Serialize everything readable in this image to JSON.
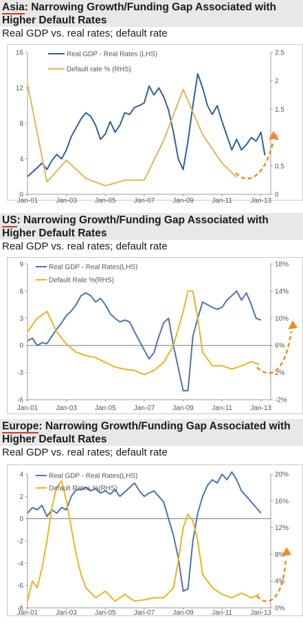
{
  "chart_data": [
    {
      "type": "line",
      "region": "Asia",
      "title_rest": ": Narrowing Growth/Funding Gap Associated with Higher Default Rates",
      "subtitle": "Real GDP vs. real rates; default rate",
      "x_labels": [
        "Jan-01",
        "Jan-03",
        "Jan-05",
        "Jan-07",
        "Jan-09",
        "Jan-11",
        "Jan-13"
      ],
      "left_ticks": [
        "0",
        "4",
        "8",
        "12",
        "16"
      ],
      "right_ticks": [
        "0",
        "0.5",
        "1",
        "1.5",
        "2",
        "2.5"
      ],
      "ylim_left": [
        0,
        16
      ],
      "ylim_right": [
        0,
        2.5
      ],
      "grid": false,
      "legend_position": "top-left",
      "series": [
        {
          "name": "Real GDP - Real Rates (LHS)",
          "axis": "left",
          "color": "#2e5f99",
          "x": [
            2001.0,
            2001.25,
            2001.5,
            2001.75,
            2002.0,
            2002.25,
            2002.5,
            2002.75,
            2003.0,
            2003.25,
            2003.5,
            2003.75,
            2004.0,
            2004.25,
            2004.5,
            2004.75,
            2005.0,
            2005.25,
            2005.5,
            2005.75,
            2006.0,
            2006.25,
            2006.5,
            2006.75,
            2007.0,
            2007.25,
            2007.5,
            2007.75,
            2008.0,
            2008.25,
            2008.5,
            2008.75,
            2009.0,
            2009.25,
            2009.5,
            2009.75,
            2010.0,
            2010.25,
            2010.5,
            2010.75,
            2011.0,
            2011.25,
            2011.5,
            2011.75,
            2012.0,
            2012.25,
            2012.5,
            2012.75,
            2013.0,
            2013.2
          ],
          "values": [
            2.0,
            2.5,
            3.0,
            3.5,
            2.8,
            3.8,
            4.5,
            4.0,
            5.0,
            6.5,
            7.5,
            8.5,
            9.2,
            8.8,
            7.8,
            6.2,
            6.8,
            8.2,
            7.0,
            7.8,
            9.2,
            9.0,
            9.8,
            10.0,
            10.3,
            12.2,
            11.2,
            12.0,
            11.0,
            9.5,
            7.0,
            4.0,
            2.8,
            6.0,
            10.0,
            13.6,
            12.0,
            10.0,
            9.0,
            10.0,
            8.2,
            6.6,
            5.0,
            6.2,
            5.0,
            5.6,
            6.4,
            6.0,
            7.0,
            4.4
          ]
        },
        {
          "name": "Default rate % (RHS)",
          "axis": "right",
          "color": "#e4b45a",
          "x": [
            2001.0,
            2002.0,
            2003.0,
            2004.0,
            2005.0,
            2006.0,
            2007.0,
            2008.0,
            2009.0,
            2010.0,
            2011.0,
            2011.75
          ],
          "values": [
            1.95,
            0.22,
            0.6,
            0.28,
            0.15,
            0.25,
            0.25,
            0.95,
            1.85,
            1.05,
            0.55,
            0.3
          ]
        }
      ],
      "annotations": [
        {
          "type": "arrow",
          "style": "dashed",
          "color": "#f08a24",
          "description": "upward trend arrow"
        }
      ]
    },
    {
      "type": "line",
      "region": "US",
      "title_rest": ": Narrowing Growth/Funding Gap Associated with Higher Default Rates",
      "subtitle": "Real GDP vs. real rates; default rate",
      "x_labels": [
        "Jan-01",
        "Jan-03",
        "Jan-05",
        "Jan-07",
        "Jan-09",
        "Jan-11",
        "Jan-13"
      ],
      "left_ticks": [
        "-6",
        "-3",
        "0",
        "3",
        "6",
        "9"
      ],
      "right_ticks": [
        "-2%",
        "2%",
        "6%",
        "10%",
        "14%",
        "18%"
      ],
      "ylim_left": [
        -6,
        9
      ],
      "ylim_right": [
        -2,
        18
      ],
      "grid": false,
      "zero_line": true,
      "legend_position": "top-left",
      "series": [
        {
          "name": "Real GDP - Real Rates(LHS)",
          "axis": "left",
          "color": "#4a72b2",
          "x": [
            2001.0,
            2001.25,
            2001.5,
            2001.75,
            2002.0,
            2002.25,
            2002.5,
            2002.75,
            2003.0,
            2003.25,
            2003.5,
            2003.75,
            2004.0,
            2004.25,
            2004.5,
            2004.75,
            2005.0,
            2005.25,
            2005.5,
            2005.75,
            2006.0,
            2006.25,
            2006.5,
            2006.75,
            2007.0,
            2007.25,
            2007.5,
            2007.75,
            2008.0,
            2008.25,
            2008.5,
            2008.75,
            2009.0,
            2009.25,
            2009.5,
            2009.75,
            2010.0,
            2010.25,
            2010.5,
            2010.75,
            2011.0,
            2011.25,
            2011.5,
            2011.75,
            2012.0,
            2012.25,
            2012.5,
            2012.75,
            2013.0
          ],
          "values": [
            0.5,
            0.8,
            0.0,
            0.3,
            0.2,
            1.0,
            1.8,
            2.5,
            3.3,
            3.8,
            4.5,
            5.5,
            5.8,
            5.5,
            4.8,
            5.2,
            4.5,
            3.5,
            3.0,
            2.6,
            2.8,
            2.6,
            1.5,
            0.5,
            -0.5,
            -1.5,
            -0.8,
            1.0,
            2.5,
            3.0,
            0.0,
            -2.5,
            -5.0,
            -5.0,
            1.0,
            3.0,
            4.8,
            4.5,
            4.2,
            4.0,
            4.2,
            5.0,
            5.5,
            6.0,
            5.0,
            5.8,
            4.5,
            3.0,
            2.8
          ]
        },
        {
          "name": "Default Rate %(RHS)",
          "axis": "right",
          "color": "#f0b21e",
          "x": [
            2001.0,
            2001.5,
            2002.0,
            2002.5,
            2003.0,
            2003.5,
            2004.0,
            2004.5,
            2005.0,
            2005.5,
            2006.0,
            2006.5,
            2007.0,
            2007.5,
            2008.0,
            2008.5,
            2009.0,
            2009.25,
            2009.5,
            2009.75,
            2010.0,
            2010.5,
            2011.0,
            2011.5,
            2012.0,
            2012.5,
            2012.9
          ],
          "values": [
            8.0,
            10.0,
            11.0,
            8.0,
            6.2,
            5.0,
            4.5,
            4.2,
            3.5,
            2.8,
            2.5,
            2.3,
            1.7,
            2.3,
            3.5,
            6.0,
            11.0,
            14.0,
            14.0,
            10.0,
            5.0,
            3.0,
            3.0,
            2.5,
            3.0,
            3.6,
            3.2
          ]
        }
      ],
      "annotations": [
        {
          "type": "arrow",
          "style": "dashed",
          "color": "#f08a24",
          "description": "upward trend arrow"
        }
      ]
    },
    {
      "type": "line",
      "region": "Europe",
      "title_rest": ": Narrowing Growth/Funding Gap Associated with Higher Default Rates",
      "subtitle": "Real GDP vs. real rates; default rate",
      "x_labels": [
        "Jan-01",
        "Jan-03",
        "Jan-05",
        "Jan-07",
        "Jan-09",
        "Jan-11",
        "Jan-13"
      ],
      "left_ticks": [
        "-8",
        "-6",
        "-4",
        "-2",
        "0",
        "2",
        "4"
      ],
      "right_ticks": [
        "0%",
        "4%",
        "8%",
        "12%",
        "16%",
        "20%"
      ],
      "ylim_left": [
        -8,
        4
      ],
      "ylim_right": [
        0,
        20
      ],
      "grid": false,
      "zero_line": true,
      "legend_position": "top-left",
      "series": [
        {
          "name": "Real GDP - Real Rates(LHS)",
          "axis": "left",
          "color": "#4a72b2",
          "x": [
            2001.0,
            2001.25,
            2001.5,
            2001.75,
            2002.0,
            2002.25,
            2002.5,
            2002.75,
            2003.0,
            2003.25,
            2003.5,
            2003.75,
            2004.0,
            2004.25,
            2004.5,
            2004.75,
            2005.0,
            2005.25,
            2005.5,
            2005.75,
            2006.0,
            2006.25,
            2006.5,
            2006.75,
            2007.0,
            2007.25,
            2007.5,
            2007.75,
            2008.0,
            2008.25,
            2008.5,
            2008.75,
            2009.0,
            2009.25,
            2009.5,
            2009.75,
            2010.0,
            2010.25,
            2010.5,
            2010.75,
            2011.0,
            2011.25,
            2011.5,
            2011.75,
            2012.0,
            2012.25,
            2012.5,
            2012.75,
            2013.0
          ],
          "values": [
            0.5,
            1.0,
            0.8,
            1.2,
            0.2,
            0.8,
            0.5,
            1.0,
            0.8,
            2.0,
            2.6,
            2.6,
            2.8,
            2.5,
            2.7,
            2.3,
            2.5,
            2.2,
            2.6,
            2.0,
            2.4,
            2.8,
            3.2,
            2.5,
            2.0,
            2.3,
            2.5,
            2.0,
            1.5,
            0.0,
            -1.5,
            -3.5,
            -6.5,
            -6.3,
            -2.0,
            0.5,
            2.0,
            3.0,
            3.5,
            3.2,
            4.0,
            3.5,
            4.2,
            3.5,
            2.5,
            2.0,
            1.5,
            1.0,
            0.5
          ]
        },
        {
          "name": "Default Rates %(RHS)",
          "axis": "right",
          "color": "#f0b21e",
          "x": [
            2001.0,
            2001.25,
            2001.5,
            2001.75,
            2002.0,
            2002.25,
            2002.5,
            2002.75,
            2003.0,
            2003.25,
            2003.5,
            2003.75,
            2004.0,
            2004.5,
            2005.0,
            2005.5,
            2006.0,
            2006.5,
            2007.0,
            2007.5,
            2008.0,
            2008.5,
            2008.75,
            2009.0,
            2009.25,
            2009.5,
            2009.75,
            2010.0,
            2010.5,
            2011.0,
            2011.5,
            2012.0,
            2012.5,
            2012.9
          ],
          "values": [
            1.0,
            4.0,
            3.0,
            6.0,
            10.0,
            15.0,
            18.0,
            19.0,
            16.0,
            12.0,
            8.0,
            5.0,
            3.0,
            1.5,
            2.5,
            1.0,
            2.0,
            1.0,
            1.2,
            1.5,
            1.5,
            3.0,
            7.0,
            12.0,
            14.0,
            13.0,
            10.0,
            5.0,
            3.0,
            2.0,
            1.5,
            2.2,
            1.5,
            2.0
          ]
        }
      ],
      "annotations": [
        {
          "type": "arrow",
          "style": "dashed",
          "color": "#f08a24",
          "description": "upward trend arrow"
        }
      ]
    }
  ]
}
